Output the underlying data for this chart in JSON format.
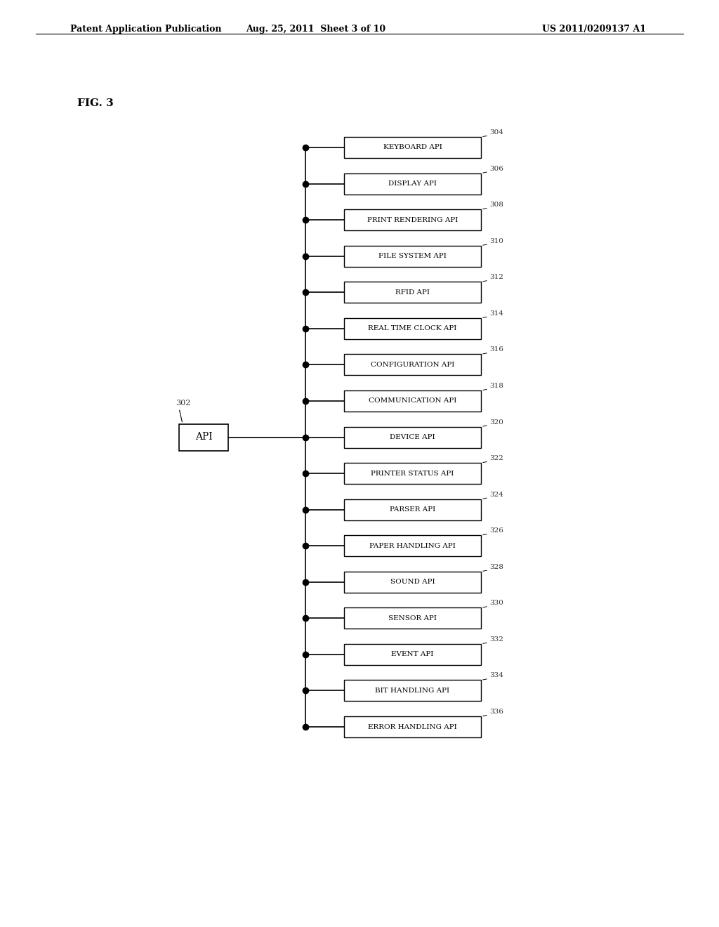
{
  "header_left": "Patent Application Publication",
  "header_center": "Aug. 25, 2011  Sheet 3 of 10",
  "header_right": "US 2011/0209137 A1",
  "fig_label": "FIG. 3",
  "api_box_label": "API",
  "api_box_ref": "302",
  "items": [
    {
      "label": "KEYBOARD API",
      "ref": "304"
    },
    {
      "label": "DISPLAY API",
      "ref": "306"
    },
    {
      "label": "PRINT RENDERING API",
      "ref": "308"
    },
    {
      "label": "FILE SYSTEM API",
      "ref": "310"
    },
    {
      "label": "RFID API",
      "ref": "312"
    },
    {
      "label": "REAL TIME CLOCK API",
      "ref": "314"
    },
    {
      "label": "CONFIGURATION API",
      "ref": "316"
    },
    {
      "label": "COMMUNICATION API",
      "ref": "318"
    },
    {
      "label": "DEVICE API",
      "ref": "320"
    },
    {
      "label": "PRINTER STATUS API",
      "ref": "322"
    },
    {
      "label": "PARSER API",
      "ref": "324"
    },
    {
      "label": "PAPER HANDLING API",
      "ref": "326"
    },
    {
      "label": "SOUND API",
      "ref": "328"
    },
    {
      "label": "SENSOR API",
      "ref": "330"
    },
    {
      "label": "EVENT API",
      "ref": "332"
    },
    {
      "label": "BIT HANDLING API",
      "ref": "334"
    },
    {
      "label": "ERROR HANDLING API",
      "ref": "336"
    }
  ],
  "bg_color": "#ffffff",
  "box_edge_color": "#000000",
  "line_color": "#000000",
  "text_color": "#000000",
  "ref_color": "#333333"
}
